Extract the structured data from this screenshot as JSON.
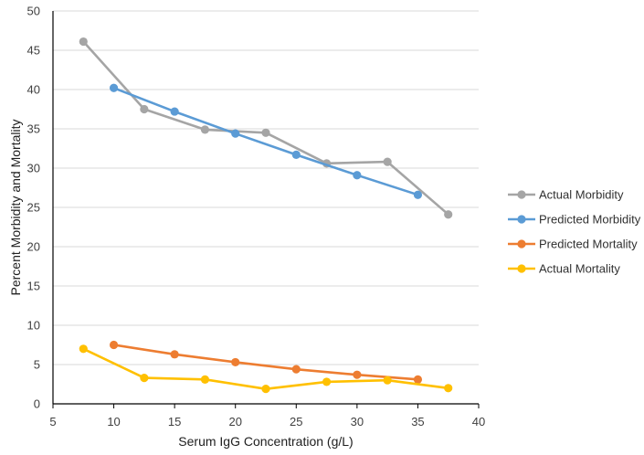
{
  "chart_data": {
    "type": "line",
    "title": "",
    "xlabel": "Serum IgG Concentration (g/L)",
    "ylabel": "Percent Morbidity and Mortality",
    "xlim": [
      5,
      40
    ],
    "ylim": [
      0,
      50
    ],
    "xticks": [
      5,
      10,
      15,
      20,
      25,
      30,
      35,
      40
    ],
    "yticks": [
      0,
      5,
      10,
      15,
      20,
      25,
      30,
      35,
      40,
      45,
      50
    ],
    "grid": "horizontal",
    "legend_position": "right",
    "series": [
      {
        "name": "Actual Morbidity",
        "color": "#A5A5A5",
        "points": [
          [
            7.5,
            46.1
          ],
          [
            12.5,
            37.5
          ],
          [
            17.5,
            34.9
          ],
          [
            22.5,
            34.5
          ],
          [
            27.5,
            30.6
          ],
          [
            32.5,
            30.8
          ],
          [
            37.5,
            24.1
          ]
        ]
      },
      {
        "name": "Predicted Morbidity",
        "color": "#5B9BD5",
        "points": [
          [
            10,
            40.2
          ],
          [
            15,
            37.2
          ],
          [
            20,
            34.4
          ],
          [
            25,
            31.7
          ],
          [
            30,
            29.1
          ],
          [
            35,
            26.6
          ]
        ]
      },
      {
        "name": "Predicted Mortality",
        "color": "#ED7D31",
        "points": [
          [
            10,
            7.5
          ],
          [
            15,
            6.3
          ],
          [
            20,
            5.3
          ],
          [
            25,
            4.4
          ],
          [
            30,
            3.7
          ],
          [
            35,
            3.1
          ]
        ]
      },
      {
        "name": "Actual Mortality",
        "color": "#FFC000",
        "points": [
          [
            7.5,
            7.0
          ],
          [
            12.5,
            3.3
          ],
          [
            17.5,
            3.1
          ],
          [
            22.5,
            1.9
          ],
          [
            27.5,
            2.8
          ],
          [
            32.5,
            3.0
          ],
          [
            37.5,
            2.0
          ]
        ]
      }
    ]
  }
}
